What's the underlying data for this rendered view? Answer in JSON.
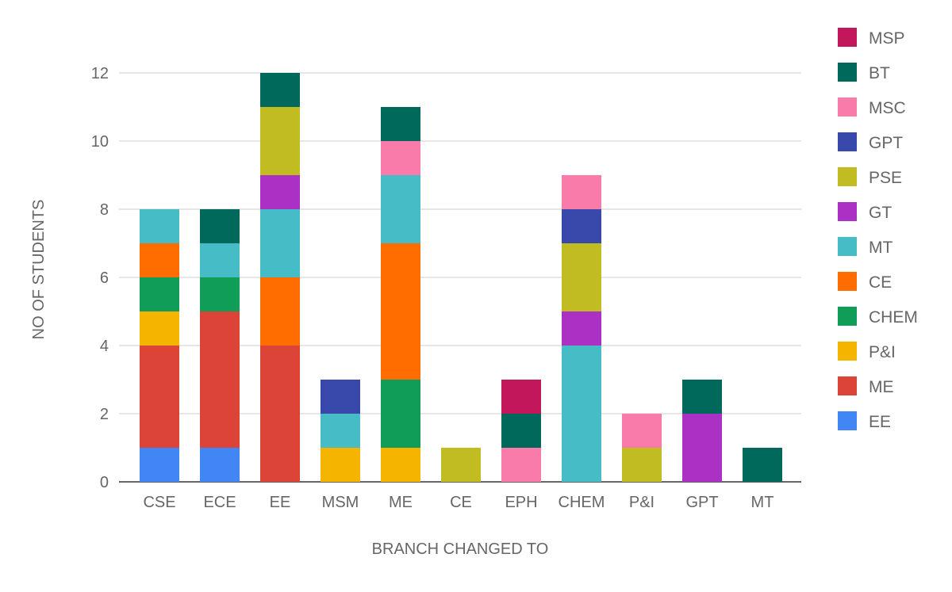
{
  "chart_data": {
    "type": "bar",
    "stacked": true,
    "title": "",
    "xlabel": "BRANCH CHANGED TO",
    "ylabel": "NO OF STUDENTS",
    "ylim": [
      0,
      12
    ],
    "yticks": [
      "0",
      "2",
      "4",
      "6",
      "8",
      "10",
      "12"
    ],
    "grid": true,
    "legend_position": "right",
    "categories": [
      "CSE",
      "ECE",
      "EE",
      "MSM",
      "ME",
      "CE",
      "EPH",
      "CHEM",
      "P&I",
      "GPT",
      "MT"
    ],
    "series": [
      {
        "name": "EE",
        "color": "#4285F4",
        "values": [
          1,
          1,
          0,
          0,
          0,
          0,
          0,
          0,
          0,
          0,
          0
        ]
      },
      {
        "name": "ME",
        "color": "#DB4437",
        "values": [
          3,
          4,
          4,
          0,
          0,
          0,
          0,
          0,
          0,
          0,
          0
        ]
      },
      {
        "name": "P&I",
        "color": "#F4B400",
        "values": [
          1,
          0,
          0,
          1,
          1,
          0,
          0,
          0,
          0,
          0,
          0
        ]
      },
      {
        "name": "CHEM",
        "color": "#0F9D58",
        "values": [
          1,
          1,
          0,
          0,
          2,
          0,
          0,
          0,
          0,
          0,
          0
        ]
      },
      {
        "name": "CE",
        "color": "#FF6D00",
        "values": [
          1,
          0,
          2,
          0,
          4,
          0,
          0,
          0,
          0,
          0,
          0
        ]
      },
      {
        "name": "MT",
        "color": "#46BDC6",
        "values": [
          1,
          1,
          2,
          1,
          2,
          0,
          0,
          4,
          0,
          0,
          0
        ]
      },
      {
        "name": "GT",
        "color": "#AB30C4",
        "values": [
          0,
          0,
          1,
          0,
          0,
          0,
          0,
          1,
          0,
          2,
          0
        ]
      },
      {
        "name": "PSE",
        "color": "#C0BC22",
        "values": [
          0,
          0,
          2,
          0,
          0,
          1,
          0,
          2,
          1,
          0,
          0
        ]
      },
      {
        "name": "GPT",
        "color": "#3949AB",
        "values": [
          0,
          0,
          0,
          1,
          0,
          0,
          0,
          1,
          0,
          0,
          0
        ]
      },
      {
        "name": "MSC",
        "color": "#F87BAA",
        "values": [
          0,
          0,
          0,
          0,
          1,
          0,
          1,
          1,
          1,
          0,
          0
        ]
      },
      {
        "name": "BT",
        "color": "#00695C",
        "values": [
          0,
          1,
          1,
          0,
          1,
          0,
          1,
          0,
          0,
          1,
          1
        ]
      },
      {
        "name": "MSP",
        "color": "#C2185B",
        "values": [
          0,
          0,
          0,
          0,
          0,
          0,
          1,
          0,
          0,
          0,
          0
        ]
      }
    ]
  }
}
